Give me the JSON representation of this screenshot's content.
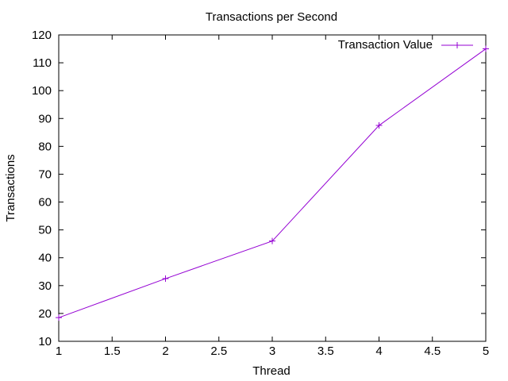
{
  "chart_data": {
    "type": "line",
    "title": "Transactions per Second",
    "xlabel": "Thread",
    "ylabel": "Transactions",
    "xlim": [
      1,
      5
    ],
    "ylim": [
      10,
      120
    ],
    "xticks": [
      1,
      1.5,
      2,
      2.5,
      3,
      3.5,
      4,
      4.5,
      5
    ],
    "yticks": [
      10,
      20,
      30,
      40,
      50,
      60,
      70,
      80,
      90,
      100,
      110,
      120
    ],
    "grid": false,
    "legend_position": "top-right",
    "series": [
      {
        "name": "Transaction Value",
        "color": "#9400d3",
        "marker": "plus",
        "x": [
          1,
          2,
          3,
          4,
          5
        ],
        "y": [
          18.5,
          32.5,
          46,
          87.5,
          115
        ]
      }
    ]
  }
}
